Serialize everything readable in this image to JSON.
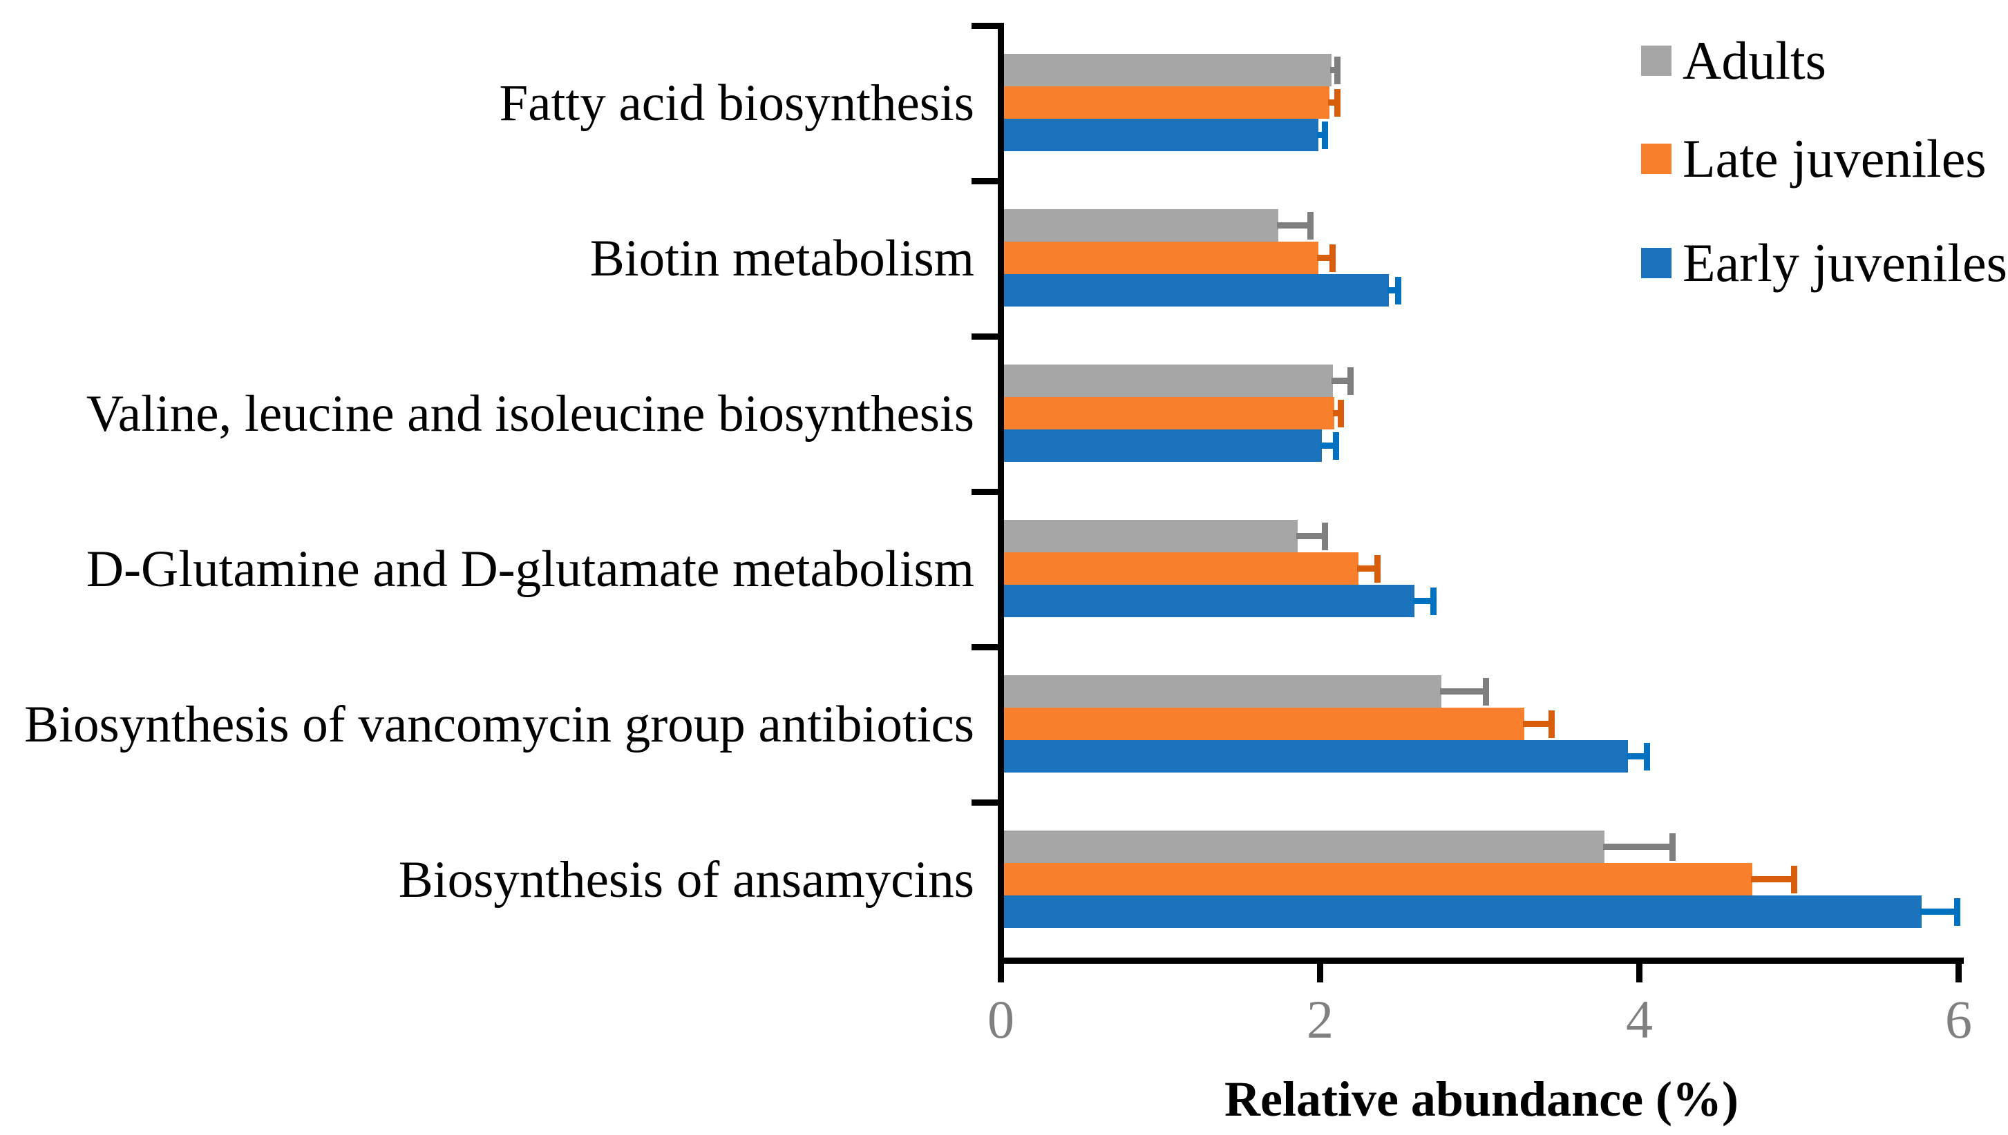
{
  "chart_data": {
    "type": "bar",
    "orientation": "horizontal",
    "title": "",
    "xlabel": "Relative abundance (%)",
    "ylabel": "",
    "xlim": [
      0,
      6
    ],
    "x_ticks": [
      0,
      2,
      4,
      6
    ],
    "grid": false,
    "legend_position": "top-right",
    "error_bars": "plus-direction",
    "categories": [
      "Fatty acid biosynthesis",
      "Biotin metabolism",
      "Valine, leucine and isoleucine biosynthesis",
      "D-Glutamine and D-glutamate metabolism",
      "Biosynthesis of vancomycin group antibiotics",
      "Biosynthesis of ansamycins"
    ],
    "series": [
      {
        "name": "Adults",
        "color": "#A6A6A6",
        "error_color": "#7F7F7F",
        "values": [
          2.05,
          1.72,
          2.06,
          1.84,
          2.74,
          3.76
        ],
        "errors": [
          0.04,
          0.2,
          0.11,
          0.17,
          0.28,
          0.43
        ]
      },
      {
        "name": "Late juveniles",
        "color": "#F8802C",
        "error_color": "#D85E0C",
        "values": [
          2.04,
          1.97,
          2.07,
          2.22,
          3.26,
          4.69
        ],
        "errors": [
          0.05,
          0.09,
          0.04,
          0.12,
          0.17,
          0.26
        ]
      },
      {
        "name": "Early juveniles",
        "color": "#1B73BE",
        "error_color": "#0070C0",
        "values": [
          1.97,
          2.41,
          1.99,
          2.57,
          3.91,
          5.75
        ],
        "errors": [
          0.04,
          0.06,
          0.09,
          0.12,
          0.12,
          0.22
        ]
      }
    ],
    "axis_color": "#000000",
    "tick_label_color": "#808080"
  }
}
